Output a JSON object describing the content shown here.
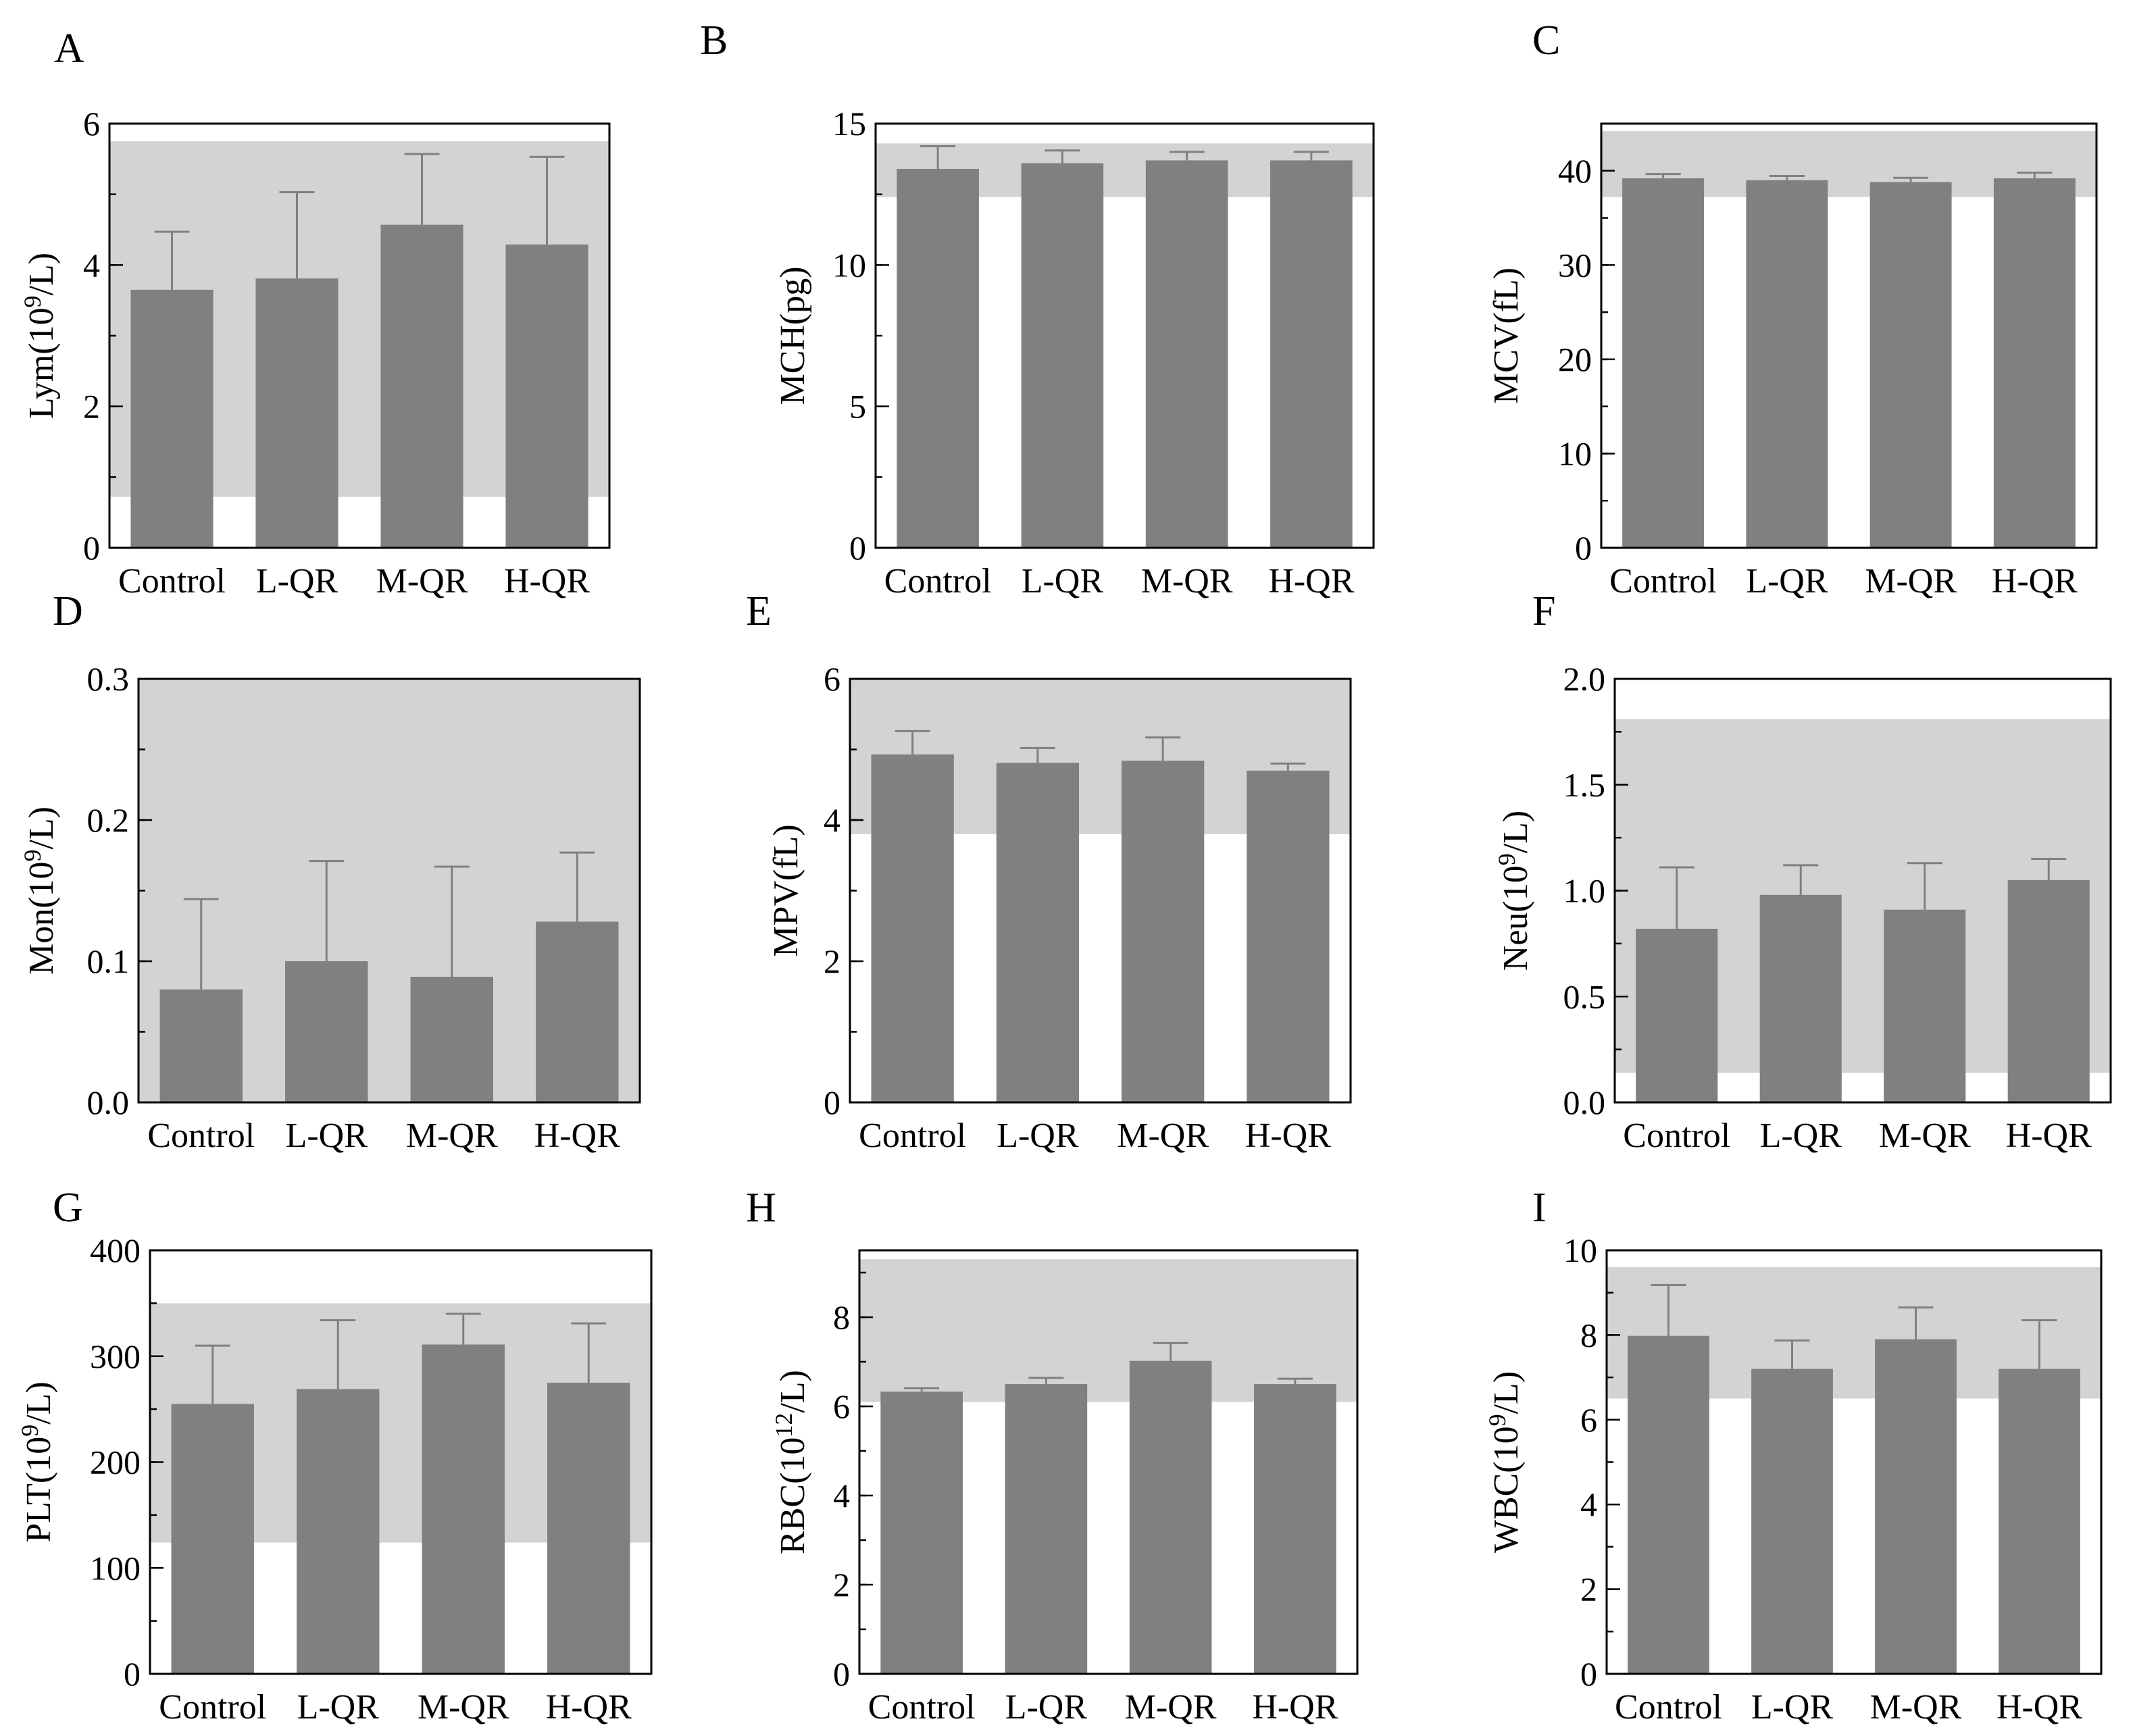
{
  "colors": {
    "bar": "#808080",
    "error": "#808080",
    "reference_band": "#d3d3d3",
    "axis": "#000000"
  },
  "chart_data": [
    {
      "panel": "A",
      "type": "bar",
      "ylabel_main": "Lym(10",
      "ylabel_sup": "9",
      "ylabel_end": "/L)",
      "categories": [
        "Control",
        "L-QR",
        "M-QR",
        "H-QR"
      ],
      "values": [
        3.65,
        3.81,
        4.57,
        4.29
      ],
      "errors": [
        0.82,
        1.22,
        1.0,
        1.24
      ],
      "ylim": [
        0,
        6
      ],
      "yticks": [
        0,
        2,
        4,
        6
      ],
      "ytick_labels": [
        "0",
        "2",
        "4",
        "6"
      ],
      "minor_step": 1,
      "reference_band": [
        0.72,
        5.75
      ]
    },
    {
      "panel": "B",
      "type": "bar",
      "ylabel_main": "MCH(pg)",
      "ylabel_sup": "",
      "ylabel_end": "",
      "categories": [
        "Control",
        "L-QR",
        "M-QR",
        "H-QR"
      ],
      "values": [
        13.4,
        13.6,
        13.7,
        13.7
      ],
      "errors": [
        0.8,
        0.45,
        0.3,
        0.3
      ],
      "ylim": [
        0,
        15
      ],
      "yticks": [
        0,
        5,
        10,
        15
      ],
      "ytick_labels": [
        "0",
        "5",
        "10",
        "15"
      ],
      "minor_step": 2.5,
      "reference_band": [
        12.4,
        14.3
      ]
    },
    {
      "panel": "C",
      "type": "bar",
      "ylabel_main": "MCV(fL)",
      "ylabel_sup": "",
      "ylabel_end": "",
      "categories": [
        "Control",
        "L-QR",
        "M-QR",
        "H-QR"
      ],
      "values": [
        39.2,
        39.0,
        38.8,
        39.2
      ],
      "errors": [
        0.45,
        0.45,
        0.45,
        0.6
      ],
      "ylim": [
        0,
        45
      ],
      "yticks": [
        0,
        10,
        20,
        30,
        40
      ],
      "ytick_labels": [
        "0",
        "10",
        "20",
        "30",
        "40"
      ],
      "minor_step": 5,
      "reference_band": [
        37.2,
        44.2
      ]
    },
    {
      "panel": "D",
      "type": "bar",
      "ylabel_main": "Mon(10",
      "ylabel_sup": "9",
      "ylabel_end": "/L)",
      "categories": [
        "Control",
        "L-QR",
        "M-QR",
        "H-QR"
      ],
      "values": [
        0.08,
        0.1,
        0.089,
        0.128
      ],
      "errors": [
        0.064,
        0.071,
        0.078,
        0.049
      ],
      "ylim": [
        0,
        0.3
      ],
      "yticks": [
        0,
        0.1,
        0.2,
        0.3
      ],
      "ytick_labels": [
        "0.0",
        "0.1",
        "0.2",
        "0.3"
      ],
      "minor_step": 0.05,
      "reference_band": [
        0,
        0.3
      ]
    },
    {
      "panel": "E",
      "type": "bar",
      "ylabel_main": "MPV(fL)",
      "ylabel_sup": "",
      "ylabel_end": "",
      "categories": [
        "Control",
        "L-QR",
        "M-QR",
        "H-QR"
      ],
      "values": [
        4.93,
        4.81,
        4.84,
        4.7
      ],
      "errors": [
        0.33,
        0.21,
        0.33,
        0.1
      ],
      "ylim": [
        0,
        6
      ],
      "yticks": [
        0,
        2,
        4,
        6
      ],
      "ytick_labels": [
        "0",
        "2",
        "4",
        "6"
      ],
      "minor_step": 1,
      "reference_band": [
        3.8,
        6.0
      ]
    },
    {
      "panel": "F",
      "type": "bar",
      "ylabel_main": "Neu(10",
      "ylabel_sup": "9",
      "ylabel_end": "/L)",
      "categories": [
        "Control",
        "L-QR",
        "M-QR",
        "H-QR"
      ],
      "values": [
        0.82,
        0.98,
        0.91,
        1.05
      ],
      "errors": [
        0.29,
        0.14,
        0.22,
        0.1
      ],
      "ylim": [
        0,
        2.0
      ],
      "yticks": [
        0,
        0.5,
        1.0,
        1.5,
        2.0
      ],
      "ytick_labels": [
        "0.0",
        "0.5",
        "1.0",
        "1.5",
        "2.0"
      ],
      "minor_step": 0.25,
      "reference_band": [
        0.14,
        1.81
      ]
    },
    {
      "panel": "G",
      "type": "bar",
      "ylabel_main": "PLT(10",
      "ylabel_sup": "9",
      "ylabel_end": "/L)",
      "categories": [
        "Control",
        "L-QR",
        "M-QR",
        "H-QR"
      ],
      "values": [
        255,
        269,
        311,
        275
      ],
      "errors": [
        55,
        65,
        29,
        56
      ],
      "ylim": [
        0,
        400
      ],
      "yticks": [
        0,
        100,
        200,
        300,
        400
      ],
      "ytick_labels": [
        "0",
        "100",
        "200",
        "300",
        "400"
      ],
      "minor_step": 50,
      "reference_band": [
        124,
        350
      ]
    },
    {
      "panel": "H",
      "type": "bar",
      "ylabel_main": "RBC(10",
      "ylabel_sup": "12",
      "ylabel_end": "/L)",
      "categories": [
        "Control",
        "L-QR",
        "M-QR",
        "H-QR"
      ],
      "values": [
        6.33,
        6.5,
        7.02,
        6.5
      ],
      "errors": [
        0.08,
        0.14,
        0.4,
        0.12
      ],
      "ylim": [
        0,
        9.5
      ],
      "yticks": [
        0,
        2,
        4,
        6,
        8
      ],
      "ytick_labels": [
        "0",
        "2",
        "4",
        "6",
        "8"
      ],
      "minor_step": 1,
      "reference_band": [
        6.1,
        9.3
      ]
    },
    {
      "panel": "I",
      "type": "bar",
      "ylabel_main": "WBC(10",
      "ylabel_sup": "9",
      "ylabel_end": "/L)",
      "categories": [
        "Control",
        "L-QR",
        "M-QR",
        "H-QR"
      ],
      "values": [
        7.98,
        7.2,
        7.9,
        7.2
      ],
      "errors": [
        1.2,
        0.67,
        0.75,
        1.15
      ],
      "ylim": [
        0,
        10
      ],
      "yticks": [
        0,
        2,
        4,
        6,
        8,
        10
      ],
      "ytick_labels": [
        "0",
        "2",
        "4",
        "6",
        "8",
        "10"
      ],
      "minor_step": 1,
      "reference_band": [
        6.5,
        9.6
      ]
    }
  ]
}
